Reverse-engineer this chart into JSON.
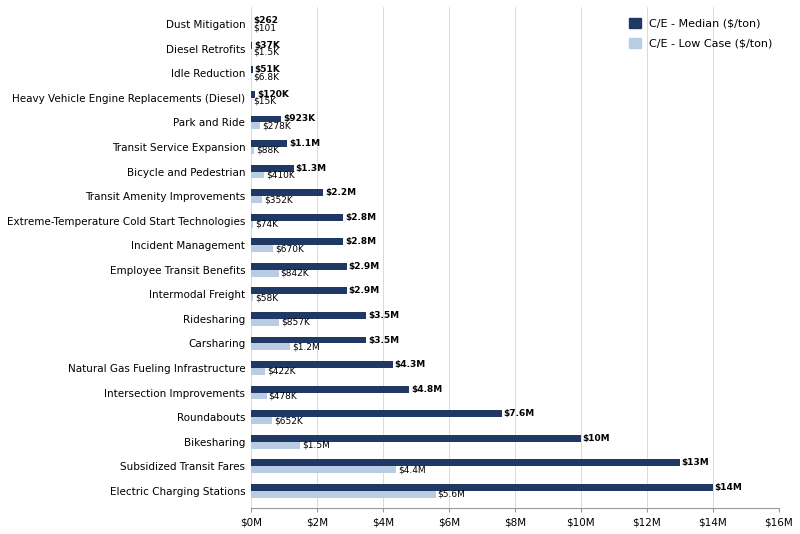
{
  "categories": [
    "Dust Mitigation",
    "Diesel Retrofits",
    "Idle Reduction",
    "Heavy Vehicle Engine Replacements (Diesel)",
    "Park and Ride",
    "Transit Service Expansion",
    "Bicycle and Pedestrian",
    "Transit Amenity Improvements",
    "Extreme-Temperature Cold Start Technologies",
    "Incident Management",
    "Employee Transit Benefits",
    "Intermodal Freight",
    "Ridesharing",
    "Carsharing",
    "Natural Gas Fueling Infrastructure",
    "Intersection Improvements",
    "Roundabouts",
    "Bikesharing",
    "Subsidized Transit Fares",
    "Electric Charging Stations"
  ],
  "median_values": [
    0.262,
    37,
    51,
    120,
    923,
    1100,
    1300,
    2200,
    2800,
    2800,
    2900,
    2900,
    3500,
    3500,
    4300,
    4800,
    7600,
    10000,
    13000,
    14000
  ],
  "low_values": [
    0.101,
    1.5,
    6.8,
    15,
    278,
    88,
    410,
    352,
    74,
    670,
    842,
    58,
    857,
    1200,
    422,
    478,
    652,
    1500,
    4400,
    5600
  ],
  "median_labels": [
    "$262",
    "$37K",
    "$51K",
    "$120K",
    "$923K",
    "$1.1M",
    "$1.3M",
    "$2.2M",
    "$2.8M",
    "$2.8M",
    "$2.9M",
    "$2.9M",
    "$3.5M",
    "$3.5M",
    "$4.3M",
    "$4.8M",
    "$7.6M",
    "$10M",
    "$13M",
    "$14M"
  ],
  "low_labels": [
    "$101",
    "$1.5K",
    "$6.8K",
    "$15K",
    "$278K",
    "$88K",
    "$410K",
    "$352K",
    "$74K",
    "$670K",
    "$842K",
    "$58K",
    "$857K",
    "$1.2M",
    "$422K",
    "$478K",
    "$652K",
    "$1.5M",
    "$4.4M",
    "$5.6M"
  ],
  "color_median": "#1F3864",
  "color_low": "#B8CCE4",
  "legend_median": "C/E - Median ($/ton)",
  "legend_low": "C/E - Low Case ($/ton)",
  "xlim": [
    0,
    16000
  ],
  "xtick_labels": [
    "$0M",
    "$2M",
    "$4M",
    "$6M",
    "$8M",
    "$10M",
    "$12M",
    "$14M",
    "$16M"
  ],
  "xtick_values": [
    0,
    2000,
    4000,
    6000,
    8000,
    10000,
    12000,
    14000,
    16000
  ],
  "bar_height": 0.28,
  "label_fontsize": 6.5,
  "tick_fontsize": 7.5
}
